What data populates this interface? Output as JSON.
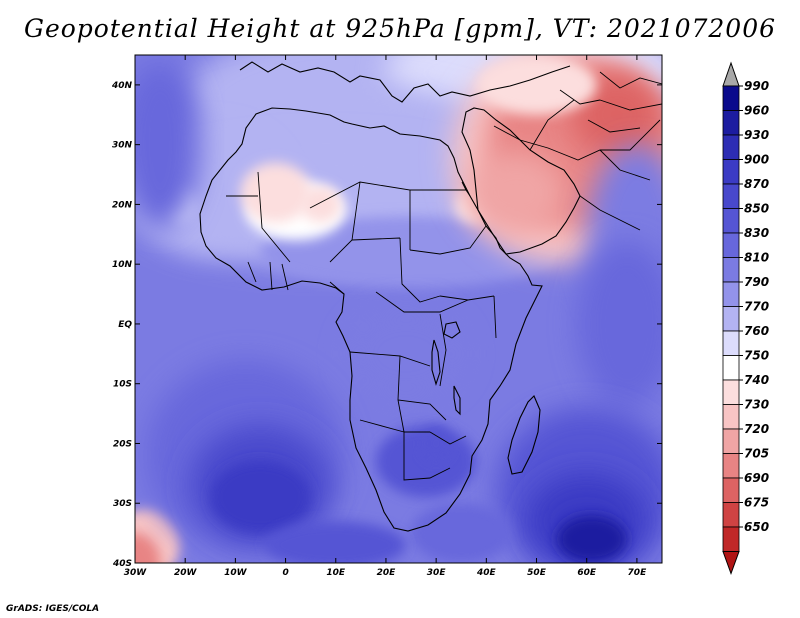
{
  "title": "Geopotential Height at 925hPa [gpm], VT: 2021072006",
  "credit": "GrADS: IGES/COLA",
  "chart_data": {
    "type": "heatmap",
    "variable": "Geopotential Height at 925hPa",
    "units": "gpm",
    "valid_time": "2021072006",
    "lon_range": [
      -30,
      75
    ],
    "lat_range": [
      -40,
      45
    ],
    "x_ticks": [
      "30W",
      "20W",
      "10W",
      "0",
      "10E",
      "20E",
      "30E",
      "40E",
      "50E",
      "60E",
      "70E"
    ],
    "y_ticks": [
      "40S",
      "30S",
      "20S",
      "10S",
      "EQ",
      "10N",
      "20N",
      "30N",
      "40N"
    ],
    "colorbar": {
      "levels": [
        990,
        960,
        930,
        900,
        870,
        850,
        830,
        810,
        790,
        770,
        760,
        750,
        740,
        730,
        720,
        705,
        690,
        675,
        650
      ],
      "colors": [
        "#0a0a8c",
        "#1c1ca0",
        "#2d2db4",
        "#3b3bc4",
        "#4848cc",
        "#5555d4",
        "#6767dc",
        "#7b7be2",
        "#9393ea",
        "#b3b3f2",
        "#dcdcfc",
        "#ffffff",
        "#fcdede",
        "#f8c4c4",
        "#f0a5a5",
        "#e88484",
        "#dd6363",
        "#cf4343",
        "#c02828",
        "#b01414"
      ],
      "extend": "both"
    },
    "features": [
      {
        "name": "high over South Atlantic",
        "center_lon": -5,
        "center_lat": -29,
        "value": 900
      },
      {
        "name": "high over southwest Indian Ocean",
        "center_lon": 61,
        "center_lat": -36,
        "value": 960
      },
      {
        "name": "heat low over Arabia and Iran",
        "center_lon": 60,
        "center_lat": 30,
        "value": 690
      },
      {
        "name": "heat low over Sahara (Mali/Algeria)",
        "center_lon": -2,
        "center_lat": 22,
        "value": 740
      },
      {
        "name": "low in southwest corner",
        "center_lon": -28,
        "center_lat": -38,
        "value": 720
      }
    ]
  }
}
